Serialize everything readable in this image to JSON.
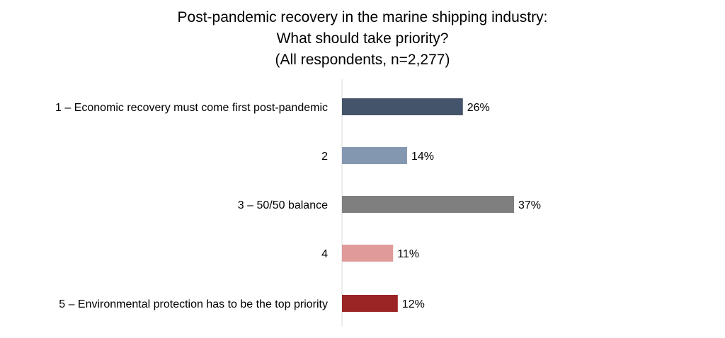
{
  "chart_data": {
    "type": "bar",
    "orientation": "horizontal",
    "title_lines": [
      "Post-pandemic recovery in the marine shipping industry:",
      "What should take priority?",
      "(All respondents, n=2,277)"
    ],
    "categories": [
      "1 – Economic recovery must come first post-pandemic",
      "2",
      "3 – 50/50 balance",
      "4",
      "5 – Environmental protection has to be the top priority"
    ],
    "values": [
      26,
      14,
      37,
      11,
      12
    ],
    "value_labels": [
      "26%",
      "14%",
      "37%",
      "11%",
      "12%"
    ],
    "colors": [
      "#44546a",
      "#8497b0",
      "#7f7f7f",
      "#e09a9a",
      "#9b2524"
    ],
    "xlim": [
      0,
      37
    ],
    "grid": false,
    "legend": "none"
  }
}
